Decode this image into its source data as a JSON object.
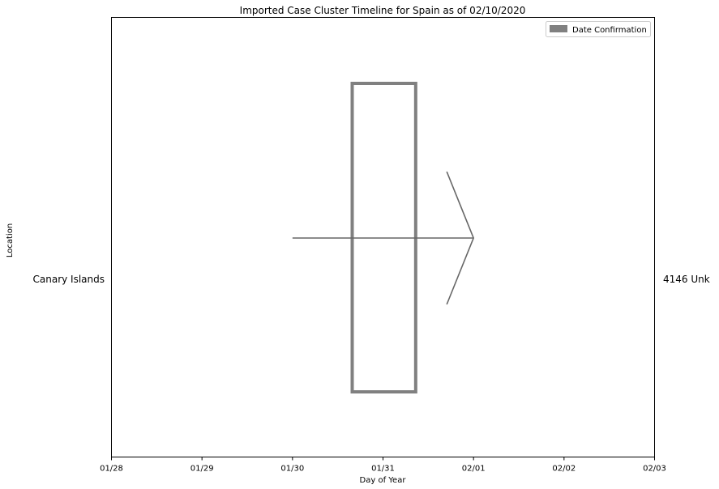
{
  "chart_data": {
    "type": "timeline",
    "title": "Imported Case Cluster Timeline for Spain as of 02/10/2020",
    "xlabel": "Day of Year",
    "ylabel": "Location",
    "x_ticks": [
      "01/28",
      "01/29",
      "01/30",
      "01/31",
      "02/01",
      "02/02",
      "02/03"
    ],
    "xlim": [
      "01/28",
      "02/03"
    ],
    "grid": false,
    "legend": {
      "placement": "top-right",
      "entries": [
        {
          "label": "Date Confirmation",
          "color": "#808080"
        }
      ]
    },
    "rows": [
      {
        "location": "Canary Islands",
        "right_label": "4146 Unk",
        "confirmation_box": {
          "start": "01/30 15:50",
          "end": "01/31 08:40",
          "color": "#808080"
        },
        "arrow": {
          "start": "01/30",
          "end": "02/01",
          "color": "#666666"
        }
      }
    ]
  }
}
